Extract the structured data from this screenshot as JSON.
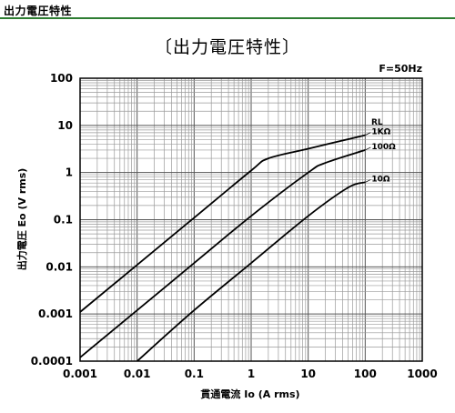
{
  "header": {
    "title": "出力電圧特性"
  },
  "chart_data": {
    "type": "line",
    "title": "〔出力電圧特性〕",
    "annotation": "F=50Hz",
    "xlabel": "貫通電流 Io (A rms)",
    "ylabel": "出力電圧 Eo (V rms)",
    "x_scale": "log",
    "y_scale": "log",
    "xlim": [
      0.001,
      1000
    ],
    "ylim": [
      0.0001,
      100
    ],
    "grid": true,
    "x_tick_labels": [
      "0.001",
      "0.01",
      "0.1",
      "1",
      "10",
      "100",
      "1000"
    ],
    "y_tick_labels": [
      "0.0001",
      "0.001",
      "0.01",
      "0.1",
      "1",
      "10",
      "100"
    ],
    "legend_title": "RL",
    "series": [
      {
        "name": "1KΩ",
        "points": [
          [
            0.001,
            0.0011
          ],
          [
            0.01,
            0.011
          ],
          [
            0.1,
            0.11
          ],
          [
            1,
            1.1
          ],
          [
            2,
            2.0
          ],
          [
            10,
            3.2
          ],
          [
            100,
            6.2
          ]
        ]
      },
      {
        "name": "100Ω",
        "points": [
          [
            0.001,
            0.00012
          ],
          [
            0.01,
            0.0012
          ],
          [
            0.1,
            0.012
          ],
          [
            1,
            0.12
          ],
          [
            10,
            1.0
          ],
          [
            20,
            1.6
          ],
          [
            100,
            3.0
          ]
        ]
      },
      {
        "name": "10Ω",
        "points": [
          [
            0.01,
            0.0001
          ],
          [
            0.1,
            0.0012
          ],
          [
            1,
            0.012
          ],
          [
            10,
            0.12
          ],
          [
            50,
            0.48
          ],
          [
            100,
            0.62
          ]
        ]
      }
    ]
  }
}
